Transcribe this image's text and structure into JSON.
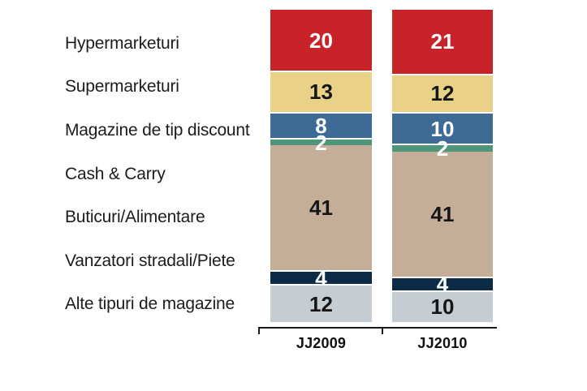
{
  "background": "#ffffff",
  "chart_data": {
    "type": "bar",
    "variant": "stacked-column",
    "title": "",
    "categories": [
      "JJ2009",
      "JJ2010"
    ],
    "axis": {
      "line_color": "#1a1a1a"
    },
    "legend_position": "left-category-labels",
    "segments": [
      {
        "label": "Hypermarketuri",
        "color": "#c9232a",
        "text_color": "#ffffff",
        "values": [
          20,
          21
        ]
      },
      {
        "label": "Supermarketuri",
        "color": "#e9d287",
        "text_color": "#161616",
        "values": [
          13,
          12
        ]
      },
      {
        "label": "Magazine de tip discount",
        "color": "#3e6a96",
        "text_color": "#ffffff",
        "values": [
          8,
          10
        ]
      },
      {
        "label": "Cash & Carry",
        "color": "#4d9679",
        "text_color": "#ffffff",
        "values": [
          2,
          2
        ]
      },
      {
        "label": "Buticuri/Alimentare",
        "color": "#c4ae97",
        "text_color": "#161616",
        "values": [
          41,
          41
        ]
      },
      {
        "label": "Vanzatori stradali/Piete",
        "color": "#0d2b47",
        "text_color": "#ffffff",
        "values": [
          4,
          4
        ]
      },
      {
        "label": "Alte tipuri de magazine",
        "color": "#c6cdd2",
        "text_color": "#161616",
        "values": [
          12,
          10
        ]
      }
    ]
  }
}
